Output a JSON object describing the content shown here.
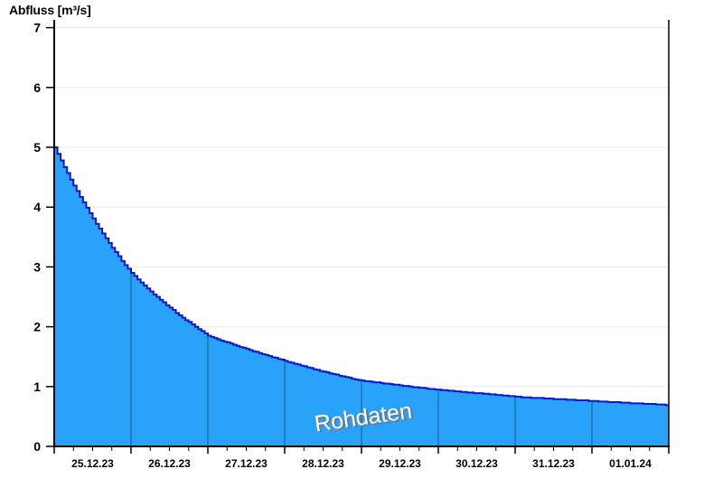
{
  "window": {
    "background": "#FFFFFF"
  },
  "chart_data": {
    "type": "area",
    "title": "Abfluss [m³/s]",
    "watermark": "Rohdaten",
    "ylabel": "Abfluss [m³/s]",
    "xlabel": "",
    "legend": "none",
    "grid": "horizontal",
    "ylim": [
      0,
      7
    ],
    "y_tick_labels": [
      "0",
      "1",
      "2",
      "3",
      "4",
      "5",
      "6",
      "7"
    ],
    "x_tick_labels": [
      "25.12.23",
      "26.12.23",
      "27.12.23",
      "28.12.23",
      "29.12.23",
      "30.12.23",
      "31.12.23",
      "01.01.24"
    ],
    "points_per_day": 24,
    "minor_ticks_per_day": 4,
    "day_boundary_values": [
      5.0,
      2.9,
      1.85,
      1.43,
      1.1,
      0.95,
      0.83,
      0.76
    ],
    "end_value": 0.69,
    "values": [
      5.0,
      4.89,
      4.78,
      4.67,
      4.57,
      4.46,
      4.36,
      4.27,
      4.17,
      4.08,
      3.99,
      3.9,
      3.81,
      3.72,
      3.64,
      3.56,
      3.48,
      3.4,
      3.32,
      3.25,
      3.18,
      3.1,
      3.03,
      2.97,
      2.9,
      2.85,
      2.79,
      2.74,
      2.69,
      2.64,
      2.59,
      2.54,
      2.5,
      2.45,
      2.41,
      2.36,
      2.32,
      2.28,
      2.23,
      2.19,
      2.15,
      2.11,
      2.08,
      2.04,
      2.0,
      1.96,
      1.93,
      1.89,
      1.85,
      1.83,
      1.81,
      1.79,
      1.77,
      1.75,
      1.74,
      1.72,
      1.7,
      1.68,
      1.66,
      1.65,
      1.63,
      1.61,
      1.59,
      1.58,
      1.56,
      1.54,
      1.53,
      1.51,
      1.49,
      1.48,
      1.46,
      1.45,
      1.43,
      1.41,
      1.4,
      1.38,
      1.37,
      1.35,
      1.34,
      1.32,
      1.31,
      1.29,
      1.28,
      1.26,
      1.25,
      1.24,
      1.22,
      1.21,
      1.2,
      1.18,
      1.17,
      1.16,
      1.15,
      1.13,
      1.12,
      1.11,
      1.1,
      1.09,
      1.09,
      1.08,
      1.07,
      1.07,
      1.06,
      1.05,
      1.05,
      1.04,
      1.03,
      1.03,
      1.02,
      1.01,
      1.01,
      1.0,
      0.99,
      0.99,
      0.98,
      0.98,
      0.97,
      0.96,
      0.96,
      0.95,
      0.95,
      0.94,
      0.94,
      0.93,
      0.93,
      0.92,
      0.92,
      0.91,
      0.91,
      0.9,
      0.9,
      0.89,
      0.89,
      0.89,
      0.88,
      0.88,
      0.87,
      0.87,
      0.86,
      0.86,
      0.85,
      0.85,
      0.84,
      0.84,
      0.83,
      0.83,
      0.82,
      0.82,
      0.82,
      0.81,
      0.81,
      0.81,
      0.81,
      0.8,
      0.8,
      0.8,
      0.79,
      0.79,
      0.79,
      0.79,
      0.78,
      0.78,
      0.78,
      0.77,
      0.77,
      0.77,
      0.77,
      0.76,
      0.76,
      0.76,
      0.75,
      0.75,
      0.75,
      0.74,
      0.74,
      0.74,
      0.74,
      0.73,
      0.73,
      0.73,
      0.72,
      0.72,
      0.72,
      0.72,
      0.71,
      0.71,
      0.71,
      0.71,
      0.7,
      0.7,
      0.7,
      0.69
    ],
    "colors": {
      "fill": "#29A2FA",
      "line": "#0A18CC",
      "day_divider": "#1D6FA5",
      "axis": "#000000",
      "grid": "#EAEAEA",
      "tick_label": "#000000",
      "watermark_text": "#FFFFFF",
      "watermark_shadow": "#777777"
    }
  }
}
